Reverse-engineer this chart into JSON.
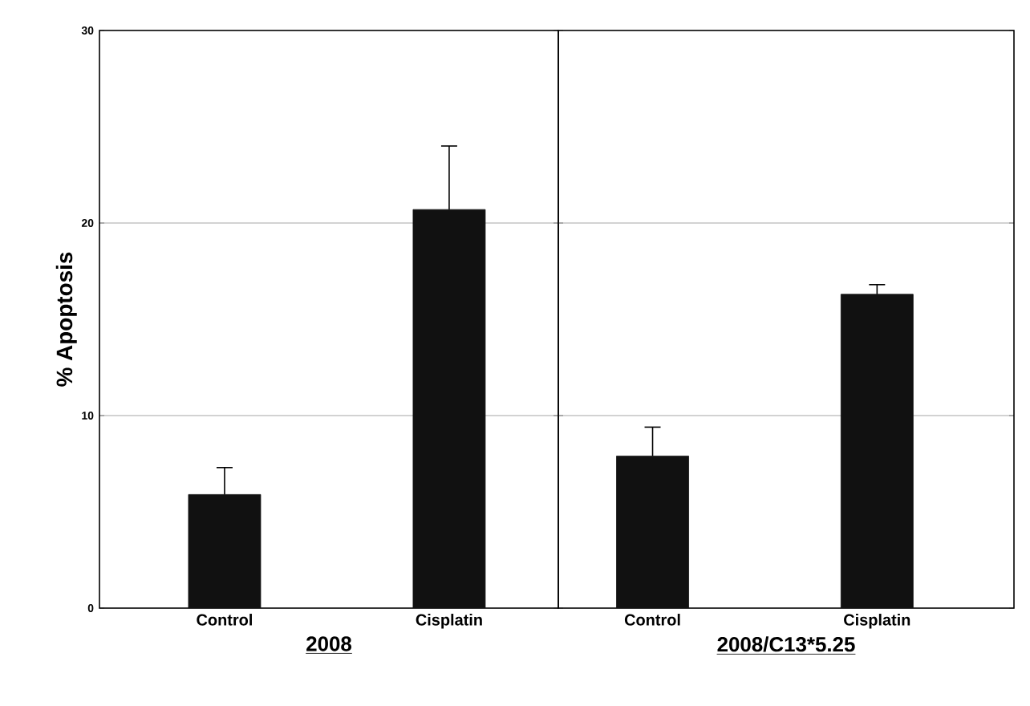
{
  "chart_data": [
    {
      "type": "bar",
      "categories": [
        "Control",
        "Cisplatin"
      ],
      "values": [
        5.9,
        20.7
      ],
      "errors": [
        [
          5.9,
          7.3
        ],
        [
          20.7,
          24.0
        ]
      ],
      "color": "#111111",
      "xlabel": "2008",
      "ylabel": "% Apoptosis",
      "ylim": [
        0,
        30
      ],
      "yticks": [
        0,
        10,
        20,
        30
      ],
      "grid": "y"
    },
    {
      "type": "bar",
      "categories": [
        "Control",
        "Cisplatin"
      ],
      "values": [
        7.9,
        16.3
      ],
      "errors": [
        [
          7.9,
          9.4
        ],
        [
          16.3,
          16.8
        ]
      ],
      "color": "#111111",
      "xlabel": "2008/C13*5.25",
      "ylim": [
        0,
        30
      ],
      "yticks": [
        0,
        10,
        20,
        30
      ],
      "grid": "y",
      "tick_labels": "x"
    }
  ]
}
